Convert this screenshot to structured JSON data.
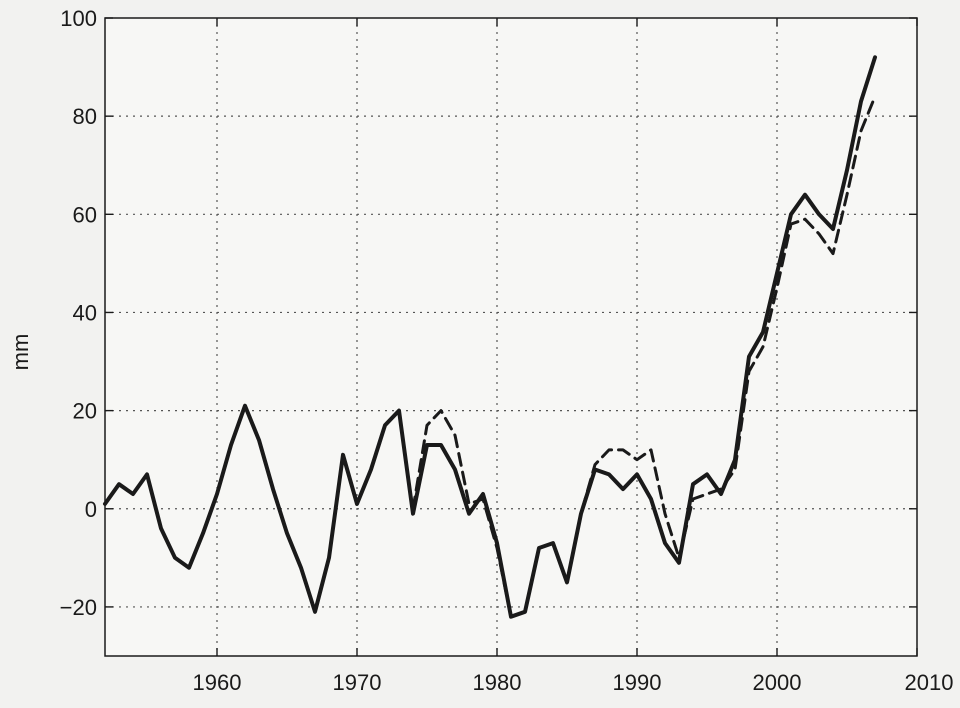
{
  "chart_data": {
    "type": "line",
    "title": "",
    "xlabel": "",
    "ylabel": "mm",
    "xlim": [
      1952,
      2010
    ],
    "ylim": [
      -30,
      100
    ],
    "grid": true,
    "xticks": [
      1960,
      1970,
      1980,
      1990,
      2000,
      2010
    ],
    "yticks": [
      -20,
      0,
      20,
      40,
      60,
      80,
      100
    ],
    "series": [
      {
        "style": "solid",
        "color": "#1a1a1a",
        "x": [
          1952,
          1953,
          1954,
          1955,
          1956,
          1957,
          1958,
          1959,
          1960,
          1961,
          1962,
          1963,
          1964,
          1965,
          1966,
          1967,
          1968,
          1969,
          1970,
          1971,
          1972,
          1973,
          1974,
          1975,
          1976,
          1977,
          1978,
          1979,
          1980,
          1981,
          1982,
          1983,
          1984,
          1985,
          1986,
          1987,
          1988,
          1989,
          1990,
          1991,
          1992,
          1993,
          1994,
          1995,
          1996,
          1997,
          1998,
          1999,
          2000,
          2001,
          2002,
          2003,
          2004,
          2005,
          2006,
          2007
        ],
        "y": [
          1,
          5,
          3,
          7,
          -4,
          -10,
          -12,
          -5,
          3,
          13,
          21,
          14,
          4,
          -5,
          -12,
          -21,
          -10,
          11,
          1,
          8,
          17,
          20,
          -1,
          13,
          13,
          8,
          -1,
          3,
          -7,
          -22,
          -21,
          -8,
          -7,
          -15,
          -1,
          8,
          7,
          4,
          7,
          2,
          -7,
          -11,
          5,
          7,
          3,
          10,
          31,
          36,
          48,
          60,
          64,
          60,
          57,
          69,
          83,
          92
        ]
      },
      {
        "style": "dashed",
        "color": "#1a1a1a",
        "x": [
          1974,
          1975,
          1976,
          1977,
          1978,
          1979,
          1980,
          1981,
          1982,
          1983,
          1984,
          1985,
          1986,
          1987,
          1988,
          1989,
          1990,
          1991,
          1992,
          1993,
          1994,
          1995,
          1996,
          1997,
          1998,
          1999,
          2000,
          2001,
          2002,
          2003,
          2004,
          2005,
          2006,
          2007
        ],
        "y": [
          0,
          17,
          20,
          15,
          1,
          2,
          -8,
          -22,
          -21,
          -8,
          -7,
          -15,
          -1,
          9,
          12,
          12,
          10,
          12,
          -1,
          -10,
          2,
          3,
          4,
          8,
          28,
          33,
          45,
          58,
          59,
          56,
          52,
          64,
          77,
          84
        ]
      }
    ]
  }
}
